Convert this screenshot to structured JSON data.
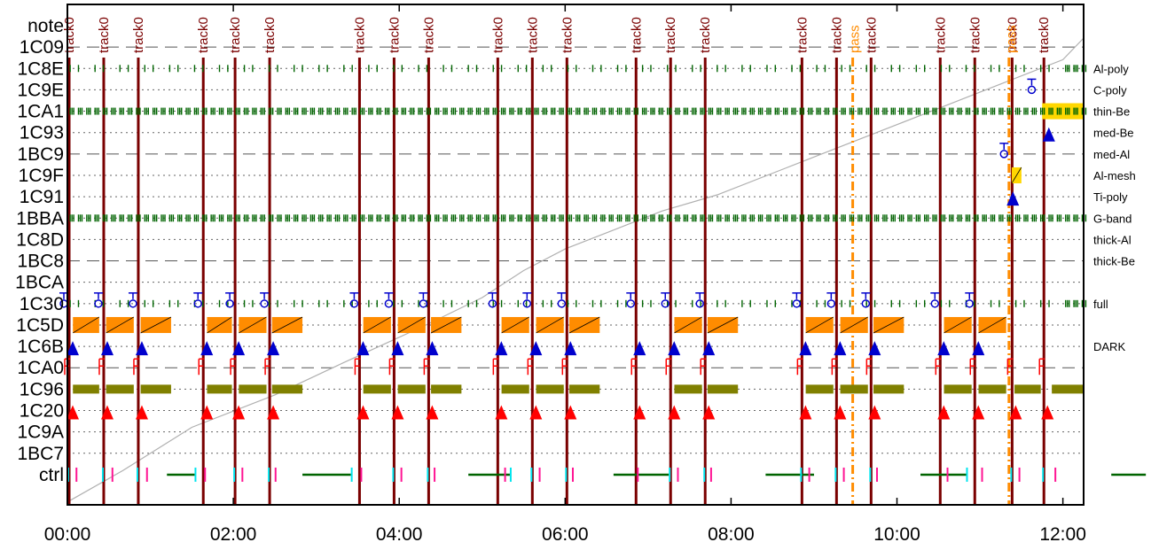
{
  "chart_data": {
    "type": "timeline",
    "title": "",
    "xlabel": "",
    "ylabel": "",
    "x_ticks": [
      "00:00",
      "02:00",
      "04:00",
      "06:00",
      "08:00",
      "10:00",
      "12:00"
    ],
    "x_range_minutes": [
      0,
      735
    ],
    "rows": [
      "note",
      "1C09",
      "1C8E",
      "1C9E",
      "1CA1",
      "1C93",
      "1BC9",
      "1C9F",
      "1C91",
      "1BBA",
      "1C8D",
      "1BC8",
      "1BCA",
      "1C30",
      "1C5D",
      "1C6B",
      "1CA0",
      "1C96",
      "1C20",
      "1C9A",
      "1BC7",
      "ctrl"
    ],
    "row_styles": [
      "none",
      "dash",
      "dot",
      "dot",
      "dot",
      "dot",
      "dash",
      "dot",
      "dot",
      "dot",
      "dot",
      "dash",
      "dot",
      "dot",
      "dot",
      "dot",
      "dash",
      "dot",
      "dot",
      "dot",
      "dot",
      "none"
    ],
    "filter_labels": [
      {
        "row": "1C8E",
        "label": "Al-poly"
      },
      {
        "row": "1C9E",
        "label": "C-poly"
      },
      {
        "row": "1CA1",
        "label": "thin-Be"
      },
      {
        "row": "1C93",
        "label": "med-Be"
      },
      {
        "row": "1BC9",
        "label": "med-Al"
      },
      {
        "row": "1C9F",
        "label": "Al-mesh"
      },
      {
        "row": "1C91",
        "label": "Ti-poly"
      },
      {
        "row": "1BBA",
        "label": "G-band"
      },
      {
        "row": "1C8D",
        "label": "thick-Al"
      },
      {
        "row": "1BC8",
        "label": "thick-Be"
      },
      {
        "row": "1C30",
        "label": "full"
      },
      {
        "row": "1C6B",
        "label": "DARK"
      }
    ],
    "track_times": [
      0,
      25,
      50,
      97,
      120,
      145,
      210,
      235,
      260,
      310,
      335,
      360,
      410,
      435,
      460,
      530,
      555,
      580,
      630,
      655,
      682,
      705
    ],
    "note_labels": [
      {
        "t": 0,
        "text": "track0",
        "type": "track"
      },
      {
        "t": 25,
        "text": "track0",
        "type": "track"
      },
      {
        "t": 50,
        "text": "track0",
        "type": "track"
      },
      {
        "t": 97,
        "text": "track0",
        "type": "track"
      },
      {
        "t": 120,
        "text": "track0",
        "type": "track"
      },
      {
        "t": 145,
        "text": "track0",
        "type": "track"
      },
      {
        "t": 210,
        "text": "track0",
        "type": "track"
      },
      {
        "t": 235,
        "text": "track0",
        "type": "track"
      },
      {
        "t": 260,
        "text": "track0",
        "type": "track"
      },
      {
        "t": 310,
        "text": "track0",
        "type": "track"
      },
      {
        "t": 335,
        "text": "track0",
        "type": "track"
      },
      {
        "t": 360,
        "text": "track0",
        "type": "track"
      },
      {
        "t": 410,
        "text": "track0",
        "type": "track"
      },
      {
        "t": 435,
        "text": "track0",
        "type": "track"
      },
      {
        "t": 460,
        "text": "track0",
        "type": "track"
      },
      {
        "t": 530,
        "text": "track0",
        "type": "track"
      },
      {
        "t": 555,
        "text": "track0",
        "type": "track"
      },
      {
        "t": 580,
        "text": "track0",
        "type": "track"
      },
      {
        "t": 630,
        "text": "track0",
        "type": "track"
      },
      {
        "t": 655,
        "text": "track0",
        "type": "track"
      },
      {
        "t": 682,
        "text": "track0",
        "type": "track"
      },
      {
        "t": 705,
        "text": "track0",
        "type": "track"
      },
      {
        "t": 568,
        "text": "pass",
        "type": "pass"
      },
      {
        "t": 681,
        "text": "pass",
        "type": "pass"
      }
    ],
    "pass_times": [
      568,
      681
    ],
    "orange_bars": {
      "row": "1C5D",
      "segments": [
        [
          4,
          23
        ],
        [
          28,
          48
        ],
        [
          53,
          75
        ],
        [
          101,
          119
        ],
        [
          124,
          144
        ],
        [
          148,
          170
        ],
        [
          214,
          234
        ],
        [
          239,
          259
        ],
        [
          263,
          285
        ],
        [
          314,
          334
        ],
        [
          339,
          359
        ],
        [
          363,
          385
        ],
        [
          434,
          434
        ],
        [
          439,
          459
        ],
        [
          463,
          485
        ],
        [
          534,
          554
        ],
        [
          559,
          579
        ],
        [
          583,
          605
        ],
        [
          634,
          654
        ],
        [
          659,
          679
        ],
        [
          655,
          655
        ]
      ]
    },
    "olive_bars": {
      "row": "1C96",
      "segments": [
        [
          4,
          23
        ],
        [
          28,
          48
        ],
        [
          53,
          75
        ],
        [
          101,
          119
        ],
        [
          124,
          144
        ],
        [
          148,
          170
        ],
        [
          214,
          234
        ],
        [
          239,
          259
        ],
        [
          263,
          285
        ],
        [
          314,
          334
        ],
        [
          339,
          359
        ],
        [
          363,
          385
        ],
        [
          434,
          434
        ],
        [
          439,
          459
        ],
        [
          463,
          485
        ],
        [
          534,
          554
        ],
        [
          559,
          579
        ],
        [
          583,
          605
        ],
        [
          634,
          654
        ],
        [
          659,
          679
        ],
        [
          685,
          704
        ],
        [
          712,
          735
        ]
      ]
    },
    "yellow_bars": {
      "row": "1CA1",
      "segments": [
        [
          711,
          735
        ],
        [
          705,
          735
        ]
      ]
    },
    "yellow_small": {
      "row": "1C9F",
      "segments": [
        [
          683,
          690
        ]
      ]
    },
    "green_tick_rows": [
      {
        "row": "1C8E",
        "dense_from": 717
      },
      {
        "row": "1CA1",
        "dense_from": 0
      },
      {
        "row": "1BBA",
        "dense_from": 0
      },
      {
        "row": "1C30",
        "dense_from": 717
      }
    ],
    "blue_triangles": {
      "row": "1C6B",
      "times": [
        0,
        25,
        50,
        97,
        120,
        145,
        210,
        235,
        260,
        310,
        335,
        360,
        410,
        435,
        460,
        530,
        555,
        580,
        630,
        655
      ]
    },
    "red_triangles": {
      "row": "1C20",
      "times": [
        0,
        25,
        50,
        97,
        120,
        145,
        210,
        235,
        260,
        310,
        335,
        360,
        410,
        435,
        460,
        530,
        555,
        580,
        630,
        655,
        682,
        705
      ]
    },
    "blue_extra_triangles": [
      {
        "row": "1C91",
        "t": 680
      },
      {
        "row": "1C93",
        "t": 706
      }
    ],
    "ot_markers": {
      "row": "1C30",
      "times": [
        0,
        25,
        50,
        97,
        120,
        145,
        210,
        235,
        260,
        310,
        335,
        360,
        410,
        435,
        460,
        530,
        555,
        580,
        630,
        655
      ]
    },
    "ot_extra": [
      {
        "row": "1BC9",
        "t": 680
      },
      {
        "row": "1C9E",
        "t": 700
      }
    ],
    "f_markers": {
      "row": "1CA0",
      "times": [
        0,
        25,
        50,
        97,
        120,
        145,
        210,
        235,
        260,
        310,
        335,
        360,
        410,
        435,
        460,
        530,
        555,
        580,
        630,
        655,
        682,
        705
      ]
    },
    "ctrl_spans": [
      [
        72,
        92
      ],
      [
        170,
        205
      ],
      [
        290,
        320
      ],
      [
        395,
        435
      ],
      [
        505,
        540
      ],
      [
        617,
        650
      ],
      [
        755,
        780
      ]
    ],
    "ctrl_marks_cyan": [
      0,
      25,
      50,
      92,
      120,
      145,
      205,
      235,
      260,
      320,
      335,
      360,
      435,
      460,
      530,
      555,
      580,
      650,
      682,
      705
    ],
    "ctrl_marks_magenta": [
      4,
      30,
      55,
      97,
      124,
      148,
      210,
      239,
      263,
      314,
      339,
      363,
      410,
      439,
      463,
      534,
      559,
      583,
      634,
      659,
      686,
      712
    ],
    "gray_curve": [
      [
        0,
        2
      ],
      [
        40,
        60
      ],
      [
        90,
        140
      ],
      [
        150,
        200
      ],
      [
        200,
        260
      ],
      [
        260,
        330
      ],
      [
        300,
        380
      ],
      [
        330,
        430
      ],
      [
        360,
        470
      ],
      [
        390,
        500
      ],
      [
        430,
        540
      ],
      [
        470,
        570
      ],
      [
        520,
        620
      ],
      [
        560,
        660
      ],
      [
        600,
        700
      ],
      [
        640,
        740
      ],
      [
        680,
        780
      ],
      [
        720,
        820
      ],
      [
        735,
        860
      ]
    ],
    "colors": {
      "track": "#7a0000",
      "pass": "#ff8c00",
      "orange": "#ff8c00",
      "olive": "#808000",
      "yellow": "#ffd700",
      "green": "#006400",
      "blue": "#0000cd",
      "red": "#ff0000",
      "cyan": "#00e5ee",
      "magenta": "#ff1493",
      "gray": "#b0b0b0"
    }
  }
}
